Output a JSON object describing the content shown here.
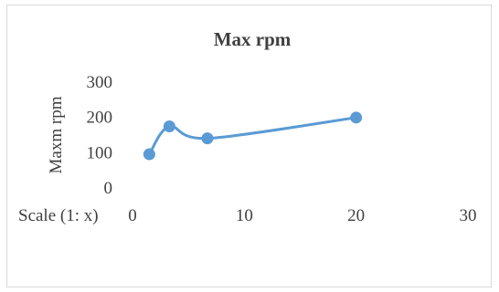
{
  "chart_data": {
    "type": "line",
    "title": "Max rpm",
    "xlabel": "Scale  (1: x)",
    "ylabel": "Maxm rpm",
    "x_ticks": [
      "0",
      "10",
      "20",
      "30"
    ],
    "y_ticks": [
      "0",
      "100",
      "200",
      "300"
    ],
    "xlim": [
      0,
      30
    ],
    "ylim": [
      0,
      300
    ],
    "grid": false,
    "smooth": true,
    "series": [
      {
        "color": "#5b9bd5",
        "points": [
          {
            "x": 1.5,
            "y": 93
          },
          {
            "x": 3.3,
            "y": 172
          },
          {
            "x": 6.7,
            "y": 138
          },
          {
            "x": 20,
            "y": 197
          }
        ]
      }
    ]
  }
}
